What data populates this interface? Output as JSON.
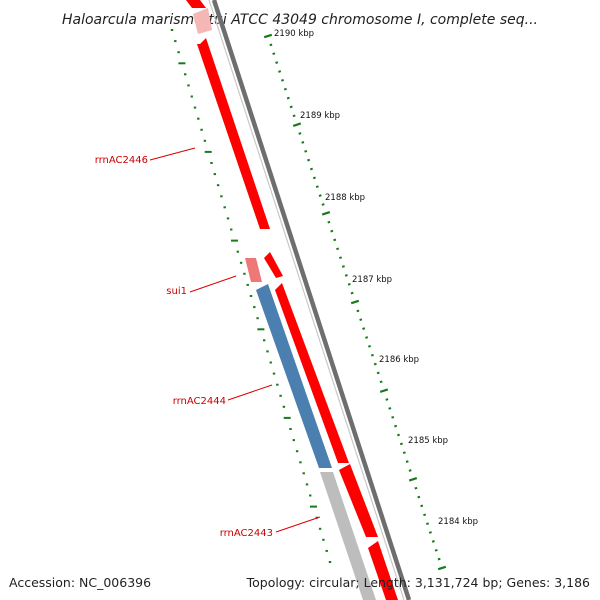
{
  "title": "Haloarcula marismortui ATCC 43049 chromosome I, complete seq...",
  "ticks": [
    "2190 kbp",
    "2189 kbp",
    "2188 kbp",
    "2187 kbp",
    "2186 kbp",
    "2185 kbp",
    "2184 kbp"
  ],
  "genes": [
    {
      "label": "rrnAC2446",
      "color": "#ff0000"
    },
    {
      "label": "sui1",
      "color": "#ee7777"
    },
    {
      "label": "rrnAC2444",
      "color": "#4a7fb0"
    },
    {
      "label": "rrnAC2443",
      "color": "#bdbdbd"
    }
  ],
  "footer": {
    "accession": "Accession: NC_006396",
    "summary": "Topology: circular; Length: 3,131,724 bp; Genes: 3,186"
  },
  "colors": {
    "forward": "#ff0000",
    "reverse": "#ff0000",
    "backbone": "#777777",
    "ticks": "#1a7a1a",
    "label_line": "#dd0000"
  }
}
